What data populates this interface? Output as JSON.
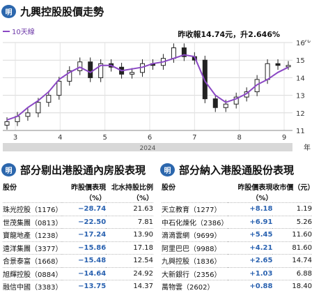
{
  "header": {
    "logo_text": "明",
    "title": "九興控股股價走勢"
  },
  "legend": {
    "label": "10天線"
  },
  "close_note": "昨收報14.74元，升2.646%",
  "chart_data": {
    "type": "line",
    "title": "九興控股股價走勢",
    "x_ticks": [
      "3",
      "4",
      "5",
      "6",
      "7",
      "8",
      "9"
    ],
    "year_label": "2024",
    "x_axis_unit": "年",
    "y_unit": "元",
    "ylim": [
      11,
      16
    ],
    "y_ticks": [
      11,
      12,
      13,
      14,
      15,
      16
    ],
    "grid": true,
    "series": [
      {
        "name": "10天線",
        "type": "line",
        "color": "#8b48c4",
        "values": [
          11.6,
          11.8,
          12.3,
          12.7,
          13.2,
          13.9,
          14.3,
          14.6,
          14.3,
          14.7,
          14.7,
          14.4,
          14.5,
          14.6,
          14.8,
          14.9,
          15.1,
          15.3,
          15.2,
          13.8,
          13.0,
          12.6,
          12.8,
          13.1,
          13.6,
          13.9,
          14.3,
          14.6
        ]
      },
      {
        "name": "",
        "type": "candlestick",
        "color": "#333333",
        "values": [
          11.5,
          11.8,
          12.0,
          12.6,
          13.0,
          13.8,
          14.4,
          14.9,
          14.0,
          14.8,
          14.6,
          14.2,
          14.3,
          14.8,
          14.7,
          15.1,
          15.7,
          15.2,
          15.0,
          12.8,
          12.3,
          12.5,
          12.9,
          13.2,
          13.9,
          14.8,
          14.7,
          14.7
        ]
      }
    ]
  },
  "left_section": {
    "logo_text": "明",
    "title": "部分剔出港股通內房股表現",
    "headers": {
      "name": "股份",
      "chg": "昨股價表現（%）",
      "ratio": "北水持股比例（%）"
    },
    "rows": [
      {
        "name": "珠光控股（1176）",
        "chg": "−28.74",
        "ratio": "21.63"
      },
      {
        "name": "世茂集團（0813）",
        "chg": "−22.50",
        "ratio": "7.81"
      },
      {
        "name": "寶龍地產（1238）",
        "chg": "−17.24",
        "ratio": "13.90"
      },
      {
        "name": "遠洋集團（3377）",
        "chg": "−15.86",
        "ratio": "17.18"
      },
      {
        "name": "合景泰富（1668）",
        "chg": "−15.48",
        "ratio": "12.54"
      },
      {
        "name": "旭輝控股（0884）",
        "chg": "−14.64",
        "ratio": "24.92"
      },
      {
        "name": "融信中國（3383）",
        "chg": "−13.75",
        "ratio": "14.37"
      }
    ]
  },
  "right_section": {
    "logo_text": "明",
    "title": "部分納入港股通股份表現",
    "headers": {
      "name": "股份",
      "chg": "昨股價表現（%）",
      "close": "收市價（元）"
    },
    "rows": [
      {
        "name": "天立教育（1277）",
        "chg": "+8.18",
        "close": "1.19"
      },
      {
        "name": "中石化煉化（2386）",
        "chg": "+6.91",
        "close": "5.26"
      },
      {
        "name": "滴滴雲網（9699）",
        "chg": "+5.45",
        "close": "11.60"
      },
      {
        "name": "阿里巴巴（9988）",
        "chg": "+4.21",
        "close": "81.60"
      },
      {
        "name": "九興控股（1836）",
        "chg": "+2.65",
        "close": "14.74"
      },
      {
        "name": "大新銀行（2356）",
        "chg": "+1.03",
        "close": "6.88"
      },
      {
        "name": "萬物雲（2602）",
        "chg": "+0.88",
        "close": "18.40"
      }
    ]
  }
}
